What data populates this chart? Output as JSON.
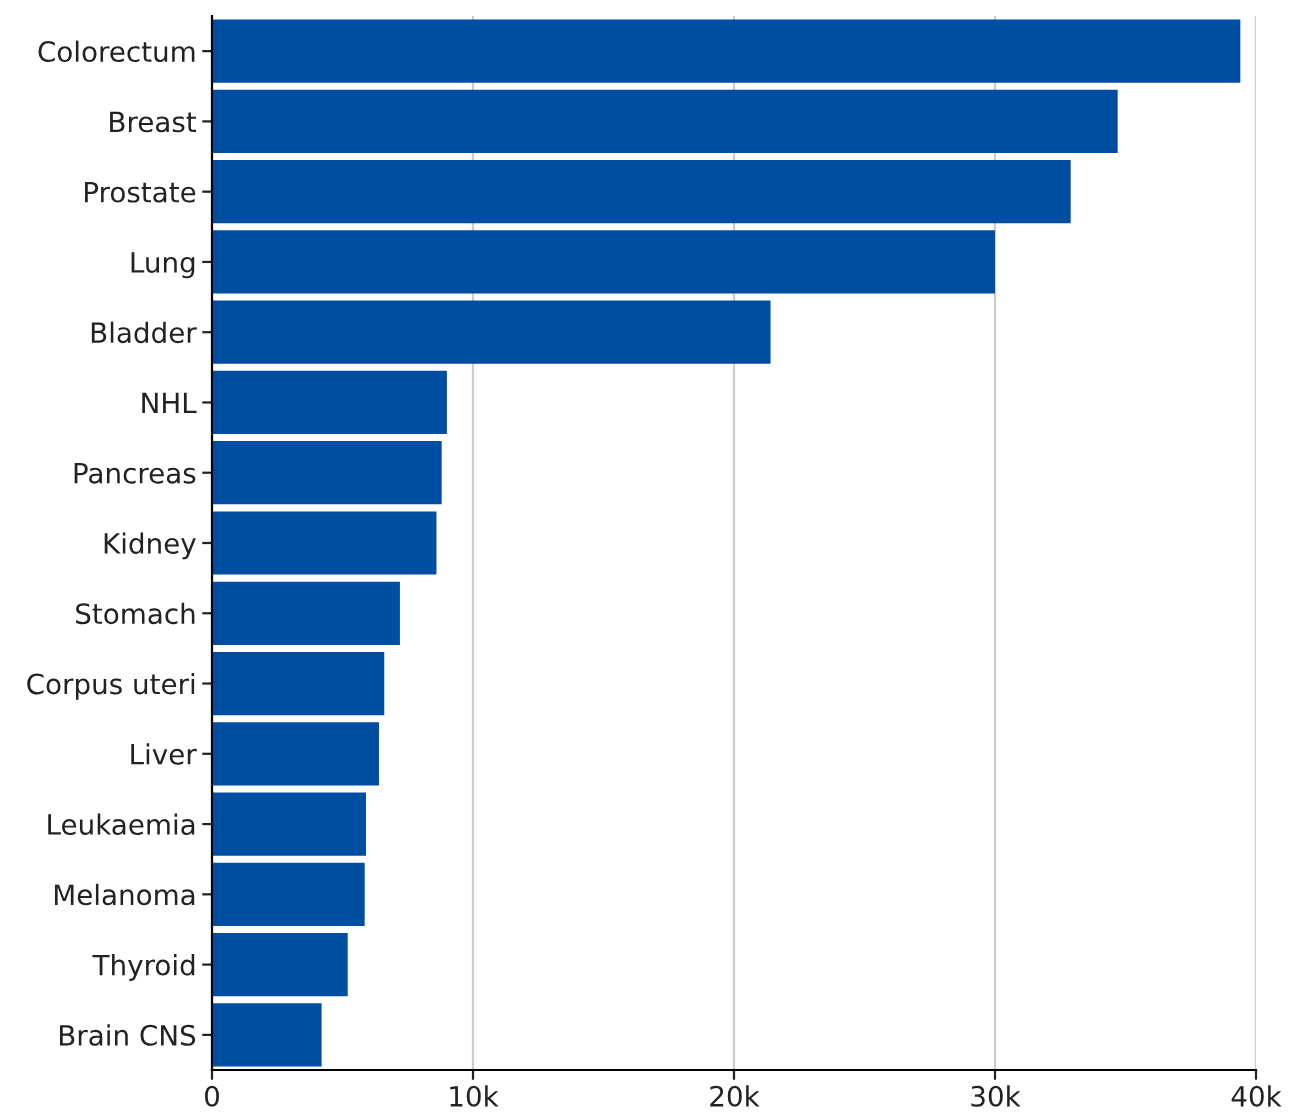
{
  "chart_data": {
    "type": "bar",
    "orientation": "horizontal",
    "categories": [
      "Colorectum",
      "Breast",
      "Prostate",
      "Lung",
      "Bladder",
      "NHL",
      "Pancreas",
      "Kidney",
      "Stomach",
      "Corpus uteri",
      "Liver",
      "Leukaemia",
      "Melanoma",
      "Thyroid",
      "Brain CNS"
    ],
    "values": [
      39400,
      34700,
      32900,
      30000,
      21400,
      9000,
      8800,
      8600,
      7200,
      6600,
      6400,
      5900,
      5850,
      5200,
      4200
    ],
    "color": "#004ea2",
    "xlim": [
      0,
      40000
    ],
    "xticks": [
      0,
      {
        "value": 10000,
        "label": "10k"
      },
      {
        "value": 20000,
        "label": "20k"
      },
      {
        "value": 30000,
        "label": "30k"
      },
      {
        "value": 40000,
        "label": "40k"
      }
    ],
    "grid": "x",
    "legend": false
  }
}
